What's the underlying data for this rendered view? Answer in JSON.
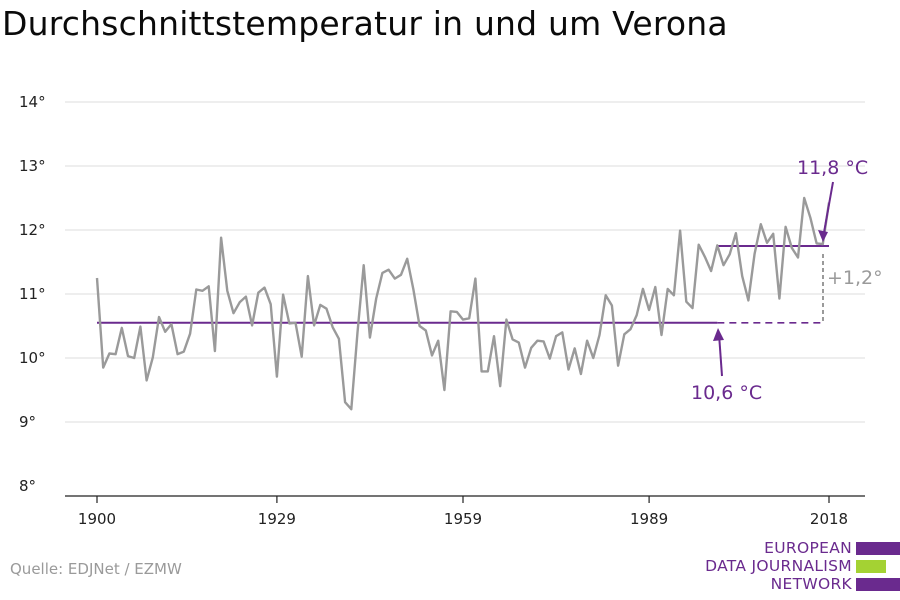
{
  "chart_data": {
    "type": "line",
    "title": "Durchschnittstemperatur in und um Verona",
    "xlabel": "",
    "ylabel": "",
    "xlim": [
      1900,
      2018
    ],
    "ylim": [
      8,
      14
    ],
    "x_ticks": [
      1900,
      1929,
      1959,
      1989,
      2018
    ],
    "y_ticks": [
      8,
      9,
      10,
      11,
      12,
      13,
      14
    ],
    "y_tick_suffix": "°",
    "grid": true,
    "series": [
      {
        "color": "#9a9a9a",
        "x": [
          1900,
          1901,
          1902,
          1903,
          1904,
          1905,
          1906,
          1907,
          1908,
          1909,
          1910,
          1911,
          1912,
          1913,
          1914,
          1915,
          1916,
          1917,
          1918,
          1919,
          1920,
          1921,
          1922,
          1923,
          1924,
          1925,
          1926,
          1927,
          1928,
          1929,
          1930,
          1931,
          1932,
          1933,
          1934,
          1935,
          1936,
          1937,
          1938,
          1939,
          1940,
          1941,
          1942,
          1943,
          1944,
          1945,
          1946,
          1947,
          1948,
          1949,
          1950,
          1951,
          1952,
          1953,
          1954,
          1955,
          1956,
          1957,
          1958,
          1959,
          1960,
          1961,
          1962,
          1963,
          1964,
          1965,
          1966,
          1967,
          1968,
          1969,
          1970,
          1971,
          1972,
          1973,
          1974,
          1975,
          1976,
          1977,
          1978,
          1979,
          1980,
          1981,
          1982,
          1983,
          1984,
          1985,
          1986,
          1987,
          1988,
          1989,
          1990,
          1991,
          1992,
          1993,
          1994,
          1995,
          1996,
          1997,
          1998,
          1999,
          2000,
          2001,
          2002,
          2003,
          2004,
          2005,
          2006,
          2007,
          2008,
          2009,
          2010,
          2011,
          2012,
          2013,
          2014,
          2015,
          2016,
          2017,
          2018
        ],
        "values": [
          11.25,
          9.85,
          10.07,
          10.06,
          10.47,
          10.03,
          10.0,
          10.49,
          9.65,
          10.01,
          10.64,
          10.41,
          10.53,
          10.06,
          10.1,
          10.38,
          11.07,
          11.05,
          11.12,
          10.11,
          11.88,
          11.05,
          10.7,
          10.87,
          10.96,
          10.51,
          11.02,
          11.1,
          10.84,
          9.71,
          10.99,
          10.54,
          10.55,
          10.02,
          11.28,
          10.51,
          10.83,
          10.77,
          10.48,
          10.3,
          9.31,
          9.2,
          10.4,
          11.45,
          10.32,
          10.93,
          11.33,
          11.38,
          11.24,
          11.3,
          11.55,
          11.07,
          10.5,
          10.43,
          10.04,
          10.27,
          9.5,
          10.73,
          10.72,
          10.6,
          10.62,
          11.24,
          9.79,
          9.79,
          10.34,
          9.56,
          10.6,
          10.29,
          10.24,
          9.85,
          10.16,
          10.27,
          10.26,
          9.99,
          10.34,
          10.4,
          9.82,
          10.15,
          9.75,
          10.27,
          10.0,
          10.36,
          10.98,
          10.82,
          9.88,
          10.37,
          10.45,
          10.67,
          11.08,
          10.75,
          11.11,
          10.36,
          11.08,
          10.98,
          11.99,
          10.88,
          10.78,
          11.77,
          11.58,
          11.36,
          11.76,
          11.45,
          11.62,
          11.95,
          11.28,
          10.9,
          11.63,
          12.09,
          11.8,
          11.94,
          10.93,
          12.05,
          11.72,
          11.57,
          12.5,
          12.19,
          11.79,
          11.78,
          12.43
        ]
      }
    ],
    "reference_lines": [
      {
        "from": 1900,
        "to": 2000,
        "value": 10.55,
        "color": "#6a2a8e",
        "extension_to": 2018,
        "extension_style": "dashed"
      },
      {
        "from": 2000,
        "to": 2018,
        "value": 11.75,
        "color": "#6a2a8e"
      }
    ],
    "annotations": [
      {
        "text": "11,8 °C",
        "color": "#6a2a8e"
      },
      {
        "text": "10,6 °C",
        "color": "#6a2a8e"
      },
      {
        "text": "+1,2°",
        "color": "#9a9a9a"
      }
    ]
  },
  "source": "Quelle: EDJNet / EZMW",
  "logo": {
    "lines": [
      "EUROPEAN",
      "DATA JOURNALISM",
      "NETWORK"
    ],
    "colors": {
      "purple": "#6a2a8e",
      "green": "#a4d233"
    }
  }
}
